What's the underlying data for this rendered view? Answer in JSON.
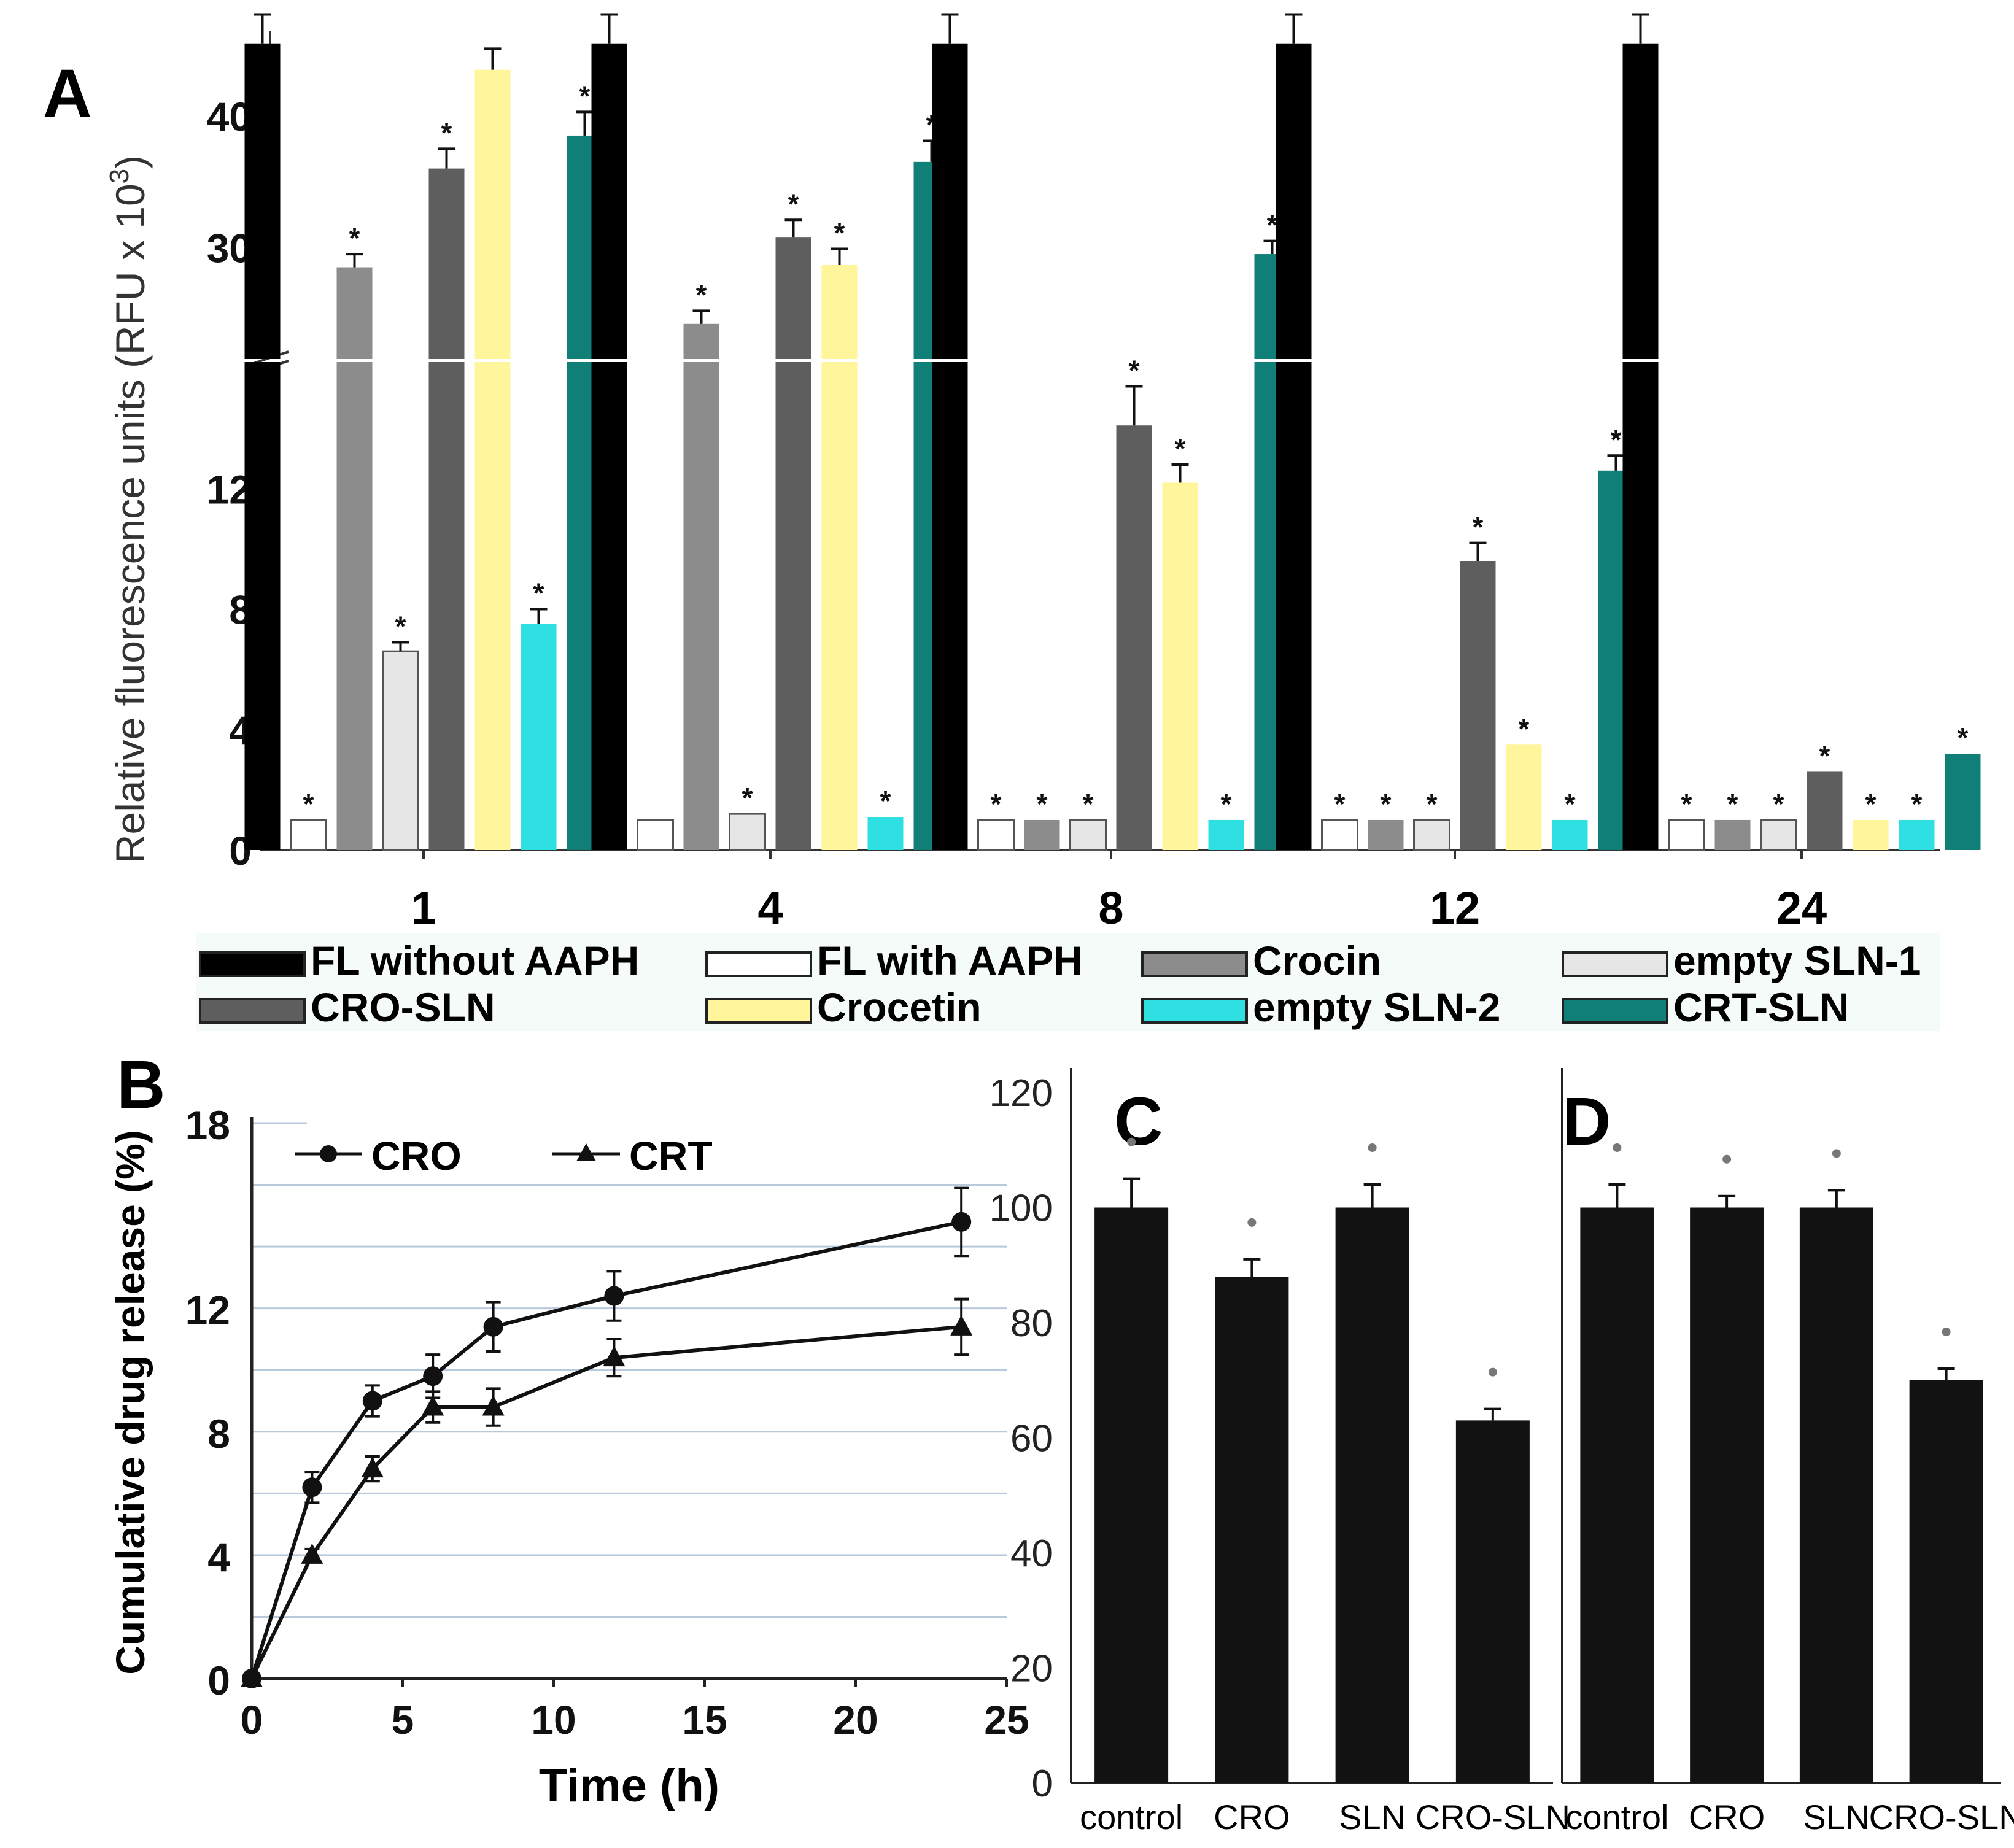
{
  "colors": {
    "FL without AAPH": "#000000",
    "FL with AAPH": "#ffffff",
    "Crocin": "#8c8c8c",
    "empty SLN-1": "#e6e6e6",
    "CRO-SLN": "#5e5e5e",
    "Crocetin": "#fff59a",
    "empty SLN-2": "#2fe0e3",
    "CRT-SLN": "#0f7f78"
  },
  "chart_data": [
    {
      "panel": "A",
      "type": "bar",
      "ylabel_main": "Relative fluorescence units",
      "ylabel_unit": "(RFU x 10",
      "ylabel_exp": "3",
      "ylabel_close": ")",
      "categories": [
        "1",
        "4",
        "8",
        "12",
        "24"
      ],
      "axis_break": true,
      "lower_ylim": [
        0,
        16
      ],
      "lower_ticks": [
        0,
        4,
        8,
        12
      ],
      "upper_ylim": [
        22,
        46
      ],
      "upper_ticks": [
        30,
        40
      ],
      "legend": [
        "FL without AAPH",
        "FL with AAPH",
        "Crocin",
        "empty SLN-1",
        "CRO-SLN",
        "Crocetin",
        "empty SLN-2",
        "CRT-SLN"
      ],
      "series": [
        {
          "name": "FL without AAPH",
          "values": [
            45.5,
            45.5,
            45.5,
            45.5,
            45.5
          ],
          "errors": [
            2.2,
            2.2,
            2.2,
            2.2,
            2.2
          ],
          "sig": [
            false,
            false,
            false,
            false,
            false
          ]
        },
        {
          "name": "FL with AAPH",
          "values": [
            1.0,
            1.0,
            1.0,
            1.0,
            1.0
          ],
          "errors": [
            0,
            0,
            0,
            0,
            0
          ],
          "sig": [
            true,
            false,
            true,
            true,
            true
          ]
        },
        {
          "name": "Crocin",
          "values": [
            28.5,
            24.2,
            1.0,
            1.0,
            1.0
          ],
          "errors": [
            1.0,
            1.0,
            0,
            0,
            0
          ],
          "sig": [
            true,
            true,
            true,
            true,
            true
          ]
        },
        {
          "name": "empty SLN-1",
          "values": [
            6.6,
            1.2,
            1.0,
            1.0,
            1.0
          ],
          "errors": [
            0.3,
            0,
            0,
            0,
            0
          ],
          "sig": [
            true,
            true,
            true,
            true,
            true
          ]
        },
        {
          "name": "CRO-SLN",
          "values": [
            36.0,
            30.8,
            14.1,
            9.6,
            2.6
          ],
          "errors": [
            1.5,
            1.3,
            1.3,
            0.6,
            0
          ],
          "sig": [
            true,
            true,
            true,
            true,
            true
          ]
        },
        {
          "name": "Crocetin",
          "values": [
            43.5,
            28.7,
            12.2,
            3.5,
            1.0
          ],
          "errors": [
            1.6,
            1.2,
            0.6,
            0,
            0
          ],
          "sig": [
            false,
            true,
            true,
            true,
            true
          ]
        },
        {
          "name": "empty SLN-2",
          "values": [
            7.5,
            1.1,
            1.0,
            1.0,
            1.0
          ],
          "errors": [
            0.5,
            0,
            0,
            0,
            0
          ],
          "sig": [
            true,
            true,
            true,
            true,
            true
          ]
        },
        {
          "name": "CRT-SLN",
          "values": [
            38.5,
            36.5,
            29.5,
            12.6,
            3.2
          ],
          "errors": [
            1.8,
            1.6,
            1.0,
            0.5,
            0
          ],
          "sig": [
            true,
            true,
            true,
            true,
            true
          ]
        }
      ]
    },
    {
      "panel": "B",
      "type": "line",
      "xlabel": "Time (h)",
      "ylabel": "Cumulative drug release (%)",
      "xlim": [
        0,
        25
      ],
      "ylim": [
        0,
        18
      ],
      "xticks": [
        0,
        5,
        10,
        15,
        20,
        25
      ],
      "yticks": [
        0,
        4,
        8,
        12,
        18
      ],
      "grid": true,
      "legend_position": "top-left",
      "series": [
        {
          "name": "CRO",
          "marker": "circle",
          "x": [
            0,
            2,
            4,
            6,
            8,
            12,
            23.5
          ],
          "y": [
            0,
            6.2,
            9.0,
            9.8,
            11.4,
            12.4,
            14.8
          ],
          "errors": [
            0,
            0.5,
            0.5,
            0.7,
            0.8,
            0.8,
            1.1
          ]
        },
        {
          "name": "CRT",
          "marker": "triangle",
          "x": [
            0,
            2,
            4,
            6,
            8,
            12,
            23.5
          ],
          "y": [
            0,
            4.0,
            6.8,
            8.8,
            8.8,
            10.4,
            11.4
          ],
          "errors": [
            0,
            0.2,
            0.4,
            0.5,
            0.6,
            0.6,
            0.9
          ]
        }
      ]
    },
    {
      "panel": "C",
      "type": "bar",
      "categories": [
        "control",
        "CRO",
        "SLN",
        "CRO-SLN"
      ],
      "values": [
        100,
        88,
        100,
        63
      ],
      "errors": [
        5,
        3,
        4,
        2
      ],
      "ylim": [
        0,
        120
      ],
      "yticks": [
        0,
        20,
        40,
        60,
        80,
        100,
        120
      ]
    },
    {
      "panel": "D",
      "type": "bar",
      "categories": [
        "control",
        "CRO",
        "SLN",
        "CRO-SLN"
      ],
      "values": [
        100,
        100,
        100,
        70
      ],
      "errors": [
        4,
        2,
        3,
        2
      ],
      "ylim": [
        0,
        120
      ]
    }
  ]
}
